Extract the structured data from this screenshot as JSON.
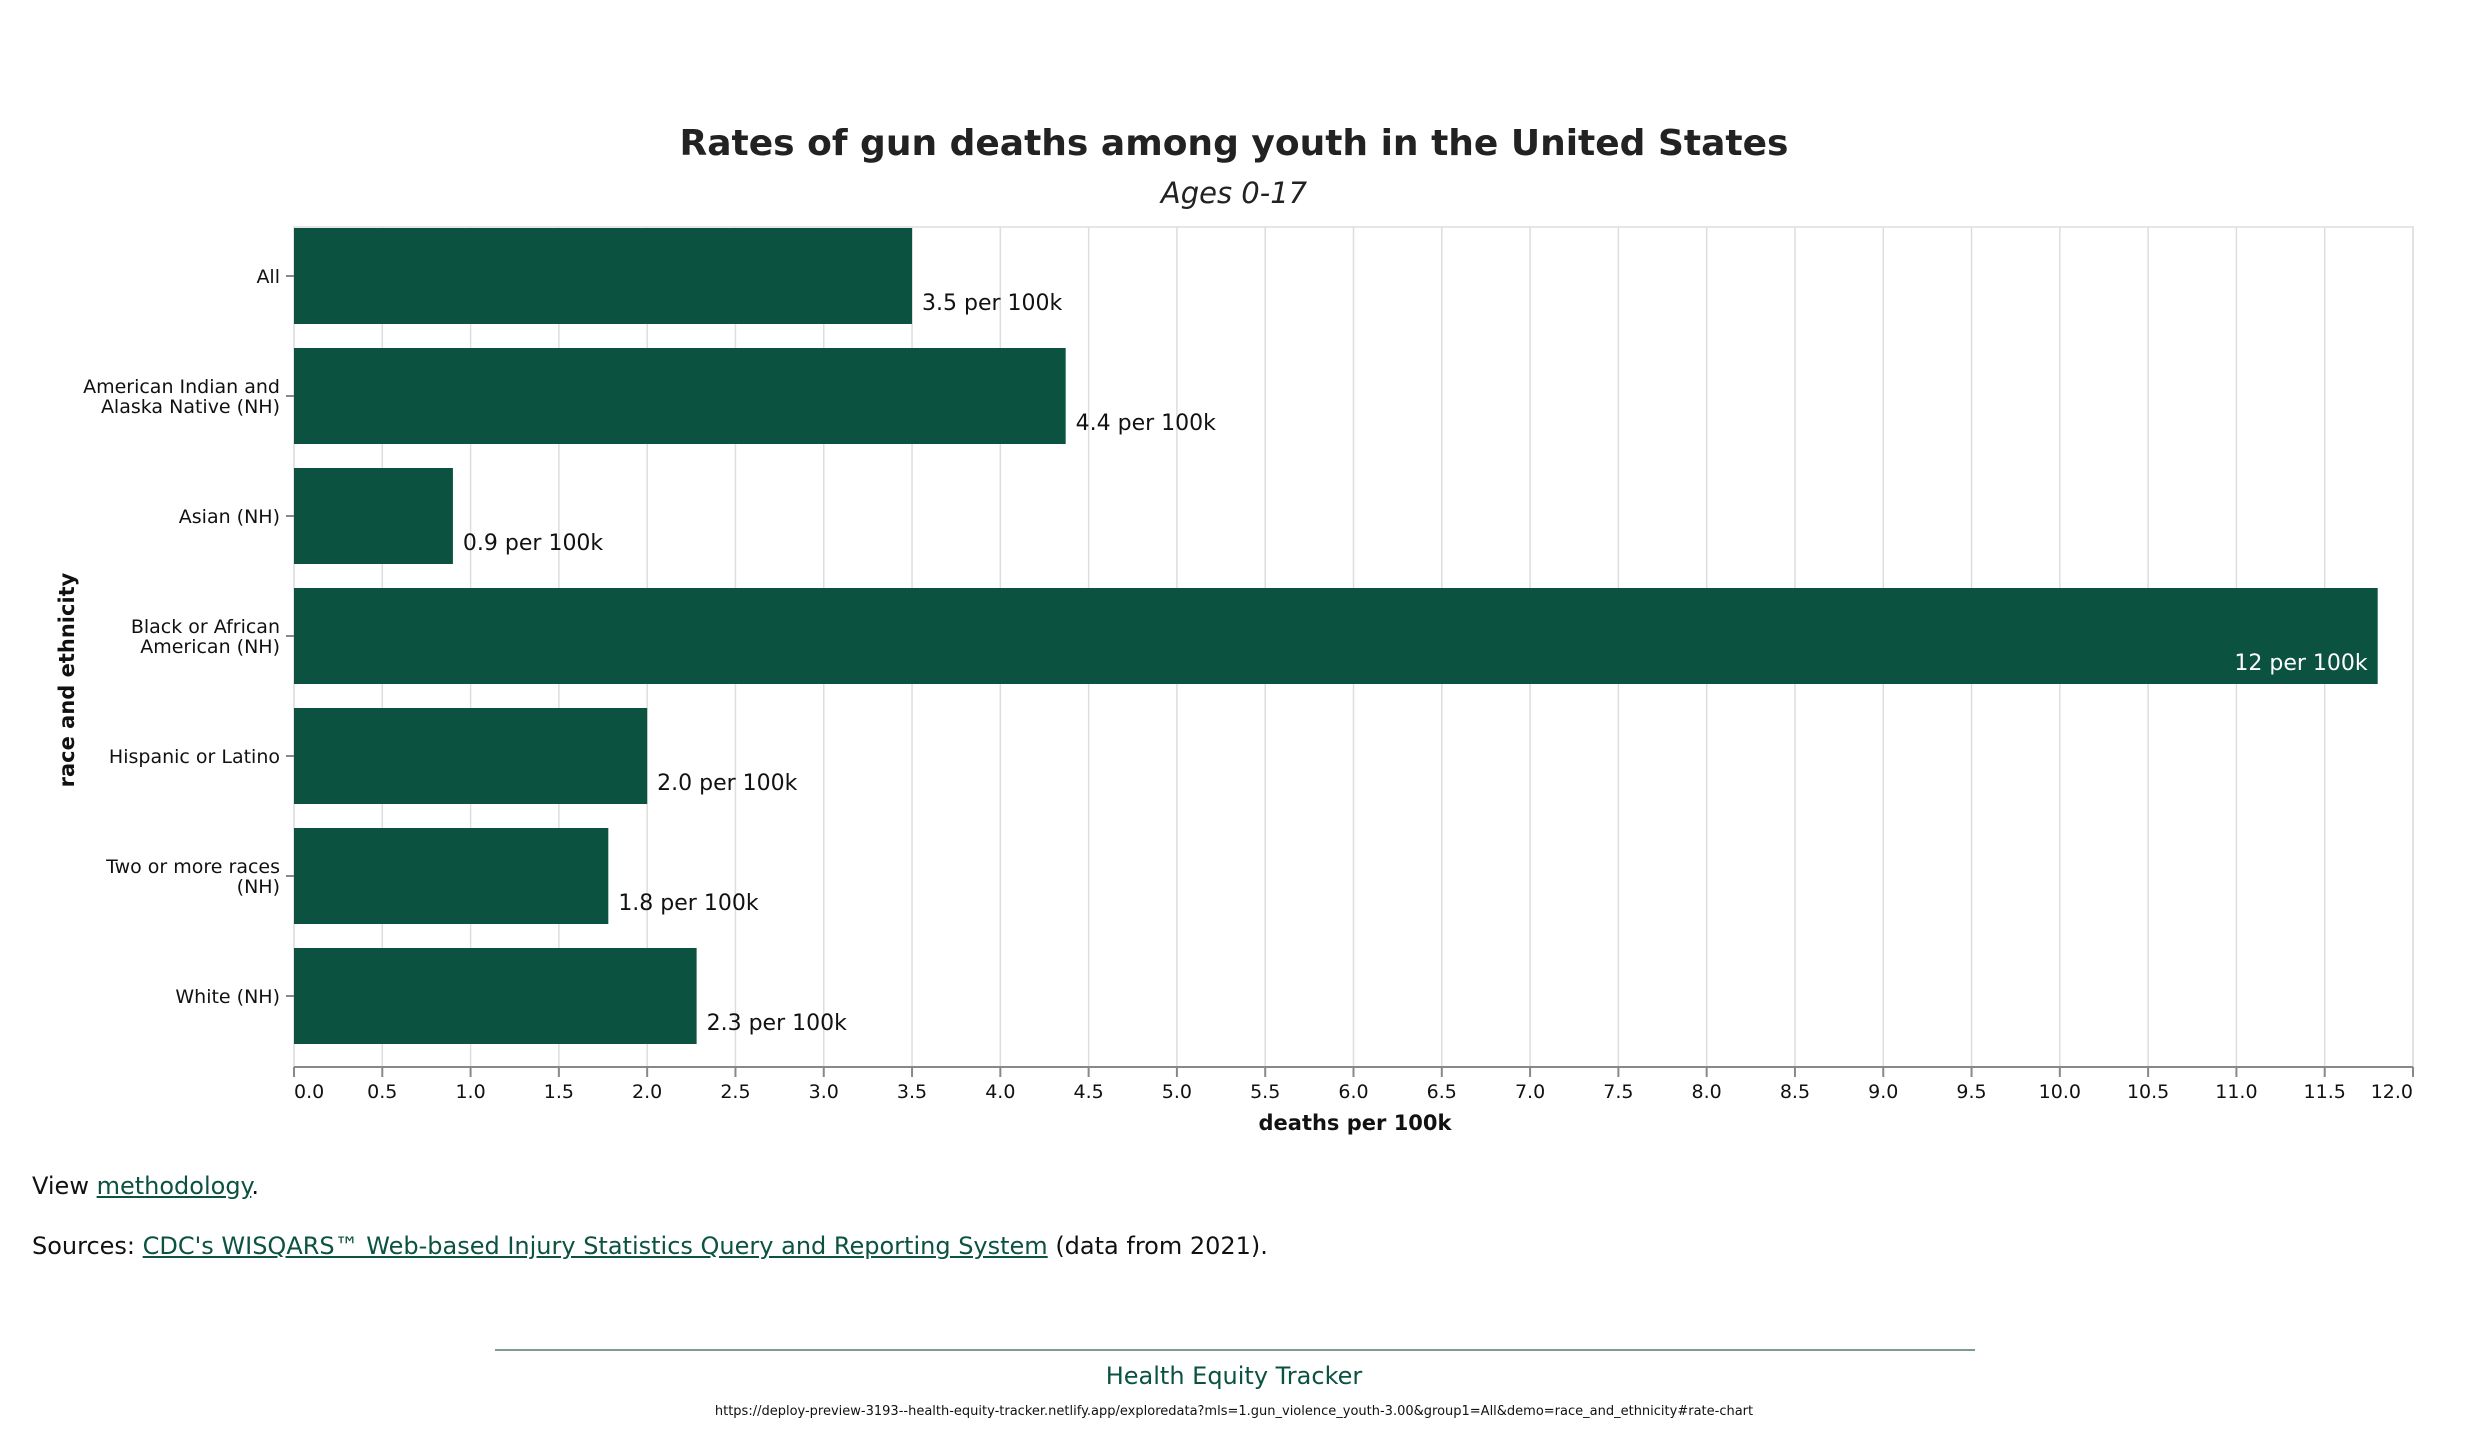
{
  "chart_data": {
    "type": "bar",
    "orientation": "horizontal",
    "title": "Rates of gun deaths among youth in the United States",
    "subtitle": "Ages 0-17",
    "xlabel": "deaths per 100k",
    "ylabel": "race and ethnicity",
    "xlim": [
      0,
      12
    ],
    "x_ticks": [
      "0.0",
      "0.5",
      "1.0",
      "1.5",
      "2.0",
      "2.5",
      "3.0",
      "3.5",
      "4.0",
      "4.5",
      "5.0",
      "5.5",
      "6.0",
      "6.5",
      "7.0",
      "7.5",
      "8.0",
      "8.5",
      "9.0",
      "9.5",
      "10.0",
      "10.5",
      "11.0",
      "11.5",
      "12.0"
    ],
    "grid": "vertical",
    "bar_color": "#0b5240",
    "categories": [
      [
        "All"
      ],
      [
        "American Indian and",
        "Alaska Native (NH)"
      ],
      [
        "Asian (NH)"
      ],
      [
        "Black or African",
        "American (NH)"
      ],
      [
        "Hispanic or Latino"
      ],
      [
        "Two or more races",
        "(NH)"
      ],
      [
        "White (NH)"
      ]
    ],
    "values": [
      3.5,
      4.37,
      0.9,
      11.8,
      2.0,
      1.78,
      2.28
    ],
    "value_labels": [
      "3.5 per 100k",
      "4.4 per 100k",
      "0.9 per 100k",
      "12 per 100k",
      "2.0 per 100k",
      "1.8 per 100k",
      "2.3 per 100k"
    ]
  },
  "footer": {
    "methodology_prefix": "View ",
    "methodology_link": "methodology",
    "methodology_suffix": ".",
    "sources_prefix": "Sources: ",
    "sources_link": "CDC's WISQARS™ Web-based Injury Statistics Query and Reporting System",
    "sources_suffix": " (data from 2021).",
    "brand": "Health Equity Tracker",
    "url": "https://deploy-preview-3193--health-equity-tracker.netlify.app/exploredata?mls=1.gun_violence_youth-3.00&group1=All&demo=race_and_ethnicity#rate-chart"
  }
}
